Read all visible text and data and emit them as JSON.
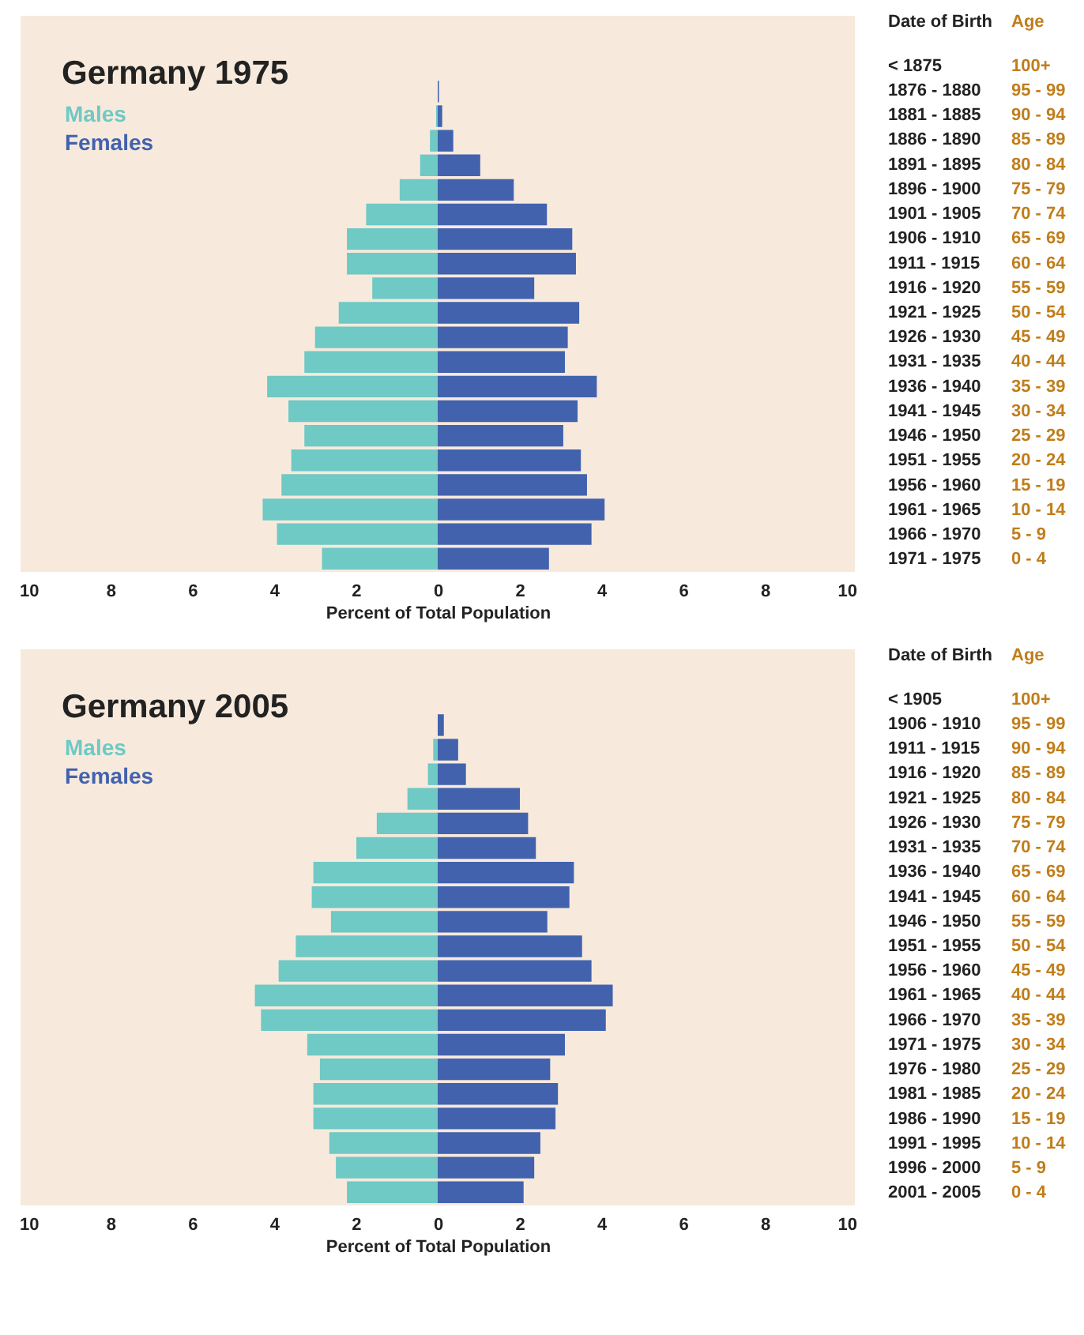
{
  "chart_data": [
    {
      "type": "bar",
      "orientation": "horizontal",
      "stacked": true,
      "title": "Germany 1975",
      "xlabel": "Percent of Total Population",
      "ylabel": "Age",
      "y2label": "Date of Birth",
      "grid": false,
      "legend": "top left",
      "categories": [
        "100+",
        "95 - 99",
        "90 - 94",
        "85 - 89",
        "80 - 84",
        "75 - 79",
        "70 - 74",
        "65 - 69",
        "60 - 64",
        "55 - 59",
        "50 - 54",
        "45 - 49",
        "40 - 44",
        "35 - 39",
        "30 - 34",
        "25 - 29",
        "20 - 24",
        "15 - 19",
        "10 - 14",
        "5 - 9",
        "0 - 4"
      ],
      "y2_categories": [
        "< 1875",
        "1876 - 1880",
        "1881 - 1885",
        "1886 - 1890",
        "1891 - 1895",
        "1896 - 1900",
        "1901 - 1905",
        "1906 - 1910",
        "1911 - 1915",
        "1916 - 1920",
        "1921 - 1925",
        "1926 - 1930",
        "1931 - 1935",
        "1936 - 1940",
        "1941 - 1945",
        "1946 - 1950",
        "1951 - 1955",
        "1956 - 1960",
        "1961 - 1965",
        "1966 - 1970",
        "1971 - 1975"
      ],
      "series": [
        {
          "name": "Males",
          "color": "#6fc9c5",
          "values": [
            0,
            0,
            -0.04,
            -0.19,
            -0.43,
            -0.93,
            -1.75,
            -2.22,
            -2.22,
            -1.6,
            -2.42,
            -3.0,
            -3.26,
            -4.17,
            -3.65,
            -3.26,
            -3.58,
            -3.82,
            -4.28,
            -3.93,
            -2.83
          ]
        },
        {
          "name": "Females",
          "color": "#4262ae",
          "values": [
            0,
            0.03,
            0.11,
            0.38,
            1.04,
            1.86,
            2.67,
            3.29,
            3.38,
            2.36,
            3.46,
            3.18,
            3.11,
            3.89,
            3.42,
            3.07,
            3.5,
            3.65,
            4.08,
            3.76,
            2.72
          ]
        }
      ],
      "xlim": [
        -10.2,
        10.2
      ],
      "xticks": [
        {
          "value": -10,
          "label": "10"
        },
        {
          "value": -8,
          "label": "8"
        },
        {
          "value": -6,
          "label": "6"
        },
        {
          "value": -4,
          "label": "4"
        },
        {
          "value": -2,
          "label": "2"
        },
        0,
        2,
        4,
        6,
        8,
        10
      ]
    },
    {
      "type": "bar",
      "orientation": "horizontal",
      "stacked": true,
      "title": "Germany 2005",
      "xlabel": "Percent of Total Population",
      "ylabel": "Age",
      "y2label": "Date of Birth",
      "grid": false,
      "legend": "top left",
      "categories": [
        "100+",
        "95 - 99",
        "90 - 94",
        "85 - 89",
        "80 - 84",
        "75 - 79",
        "70 - 74",
        "65 - 69",
        "60 - 64",
        "55 - 59",
        "50 - 54",
        "45 - 49",
        "40 - 44",
        "35 - 39",
        "30 - 34",
        "25 - 29",
        "20 - 24",
        "15 - 19",
        "10 - 14",
        "5 - 9",
        "0 - 4"
      ],
      "y2_categories": [
        "< 1905",
        "1906 - 1910",
        "1911 - 1915",
        "1916 - 1920",
        "1921 - 1925",
        "1926 - 1930",
        "1931 - 1935",
        "1936 - 1940",
        "1941 - 1945",
        "1946 - 1950",
        "1951 - 1955",
        "1956 - 1960",
        "1961 - 1965",
        "1966 - 1970",
        "1971 - 1975",
        "1976 - 1980",
        "1981 - 1985",
        "1986 - 1990",
        "1991 - 1995",
        "1996 - 2000",
        "2001 - 2005"
      ],
      "series": [
        {
          "name": "Males",
          "color": "#6fc9c5",
          "values": [
            0,
            0,
            -0.11,
            -0.24,
            -0.74,
            -1.49,
            -1.99,
            -3.04,
            -3.08,
            -2.61,
            -3.47,
            -3.89,
            -4.47,
            -4.32,
            -3.19,
            -2.88,
            -3.04,
            -3.04,
            -2.65,
            -2.49,
            -2.22
          ]
        },
        {
          "name": "Females",
          "color": "#4262ae",
          "values": [
            0,
            0.15,
            0.5,
            0.69,
            2.01,
            2.21,
            2.4,
            3.33,
            3.22,
            2.68,
            3.53,
            3.76,
            4.28,
            4.11,
            3.11,
            2.75,
            2.94,
            2.88,
            2.51,
            2.36,
            2.1
          ]
        }
      ],
      "xlim": [
        -10.2,
        10.2
      ],
      "xticks": [
        {
          "value": -10,
          "label": "10"
        },
        {
          "value": -8,
          "label": "8"
        },
        {
          "value": -6,
          "label": "6"
        },
        {
          "value": -4,
          "label": "4"
        },
        {
          "value": -2,
          "label": "2"
        },
        0,
        2,
        4,
        6,
        8,
        10
      ]
    }
  ]
}
